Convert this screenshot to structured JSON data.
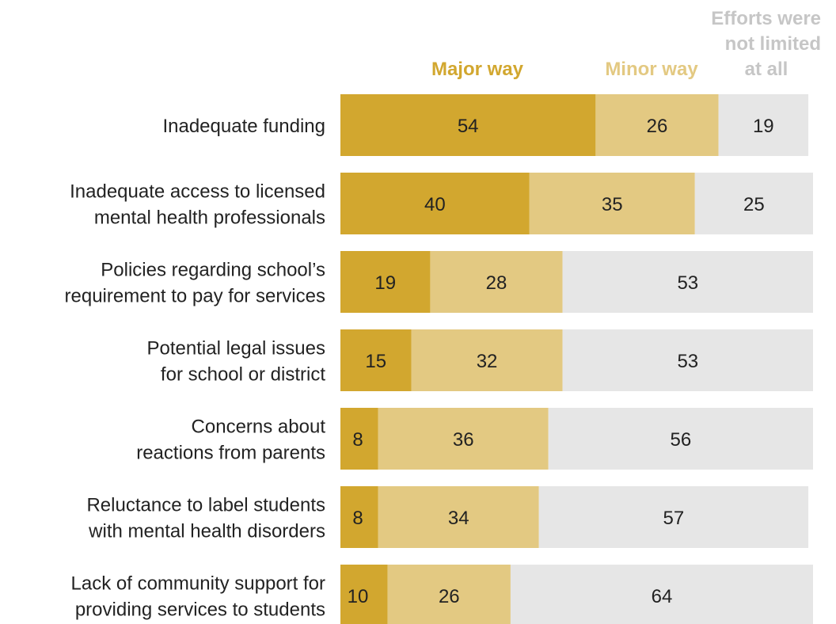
{
  "chart_data": {
    "type": "bar",
    "orientation": "horizontal",
    "stacked": true,
    "xlim": [
      0,
      100
    ],
    "unit": "%",
    "legend": {
      "placement": "top"
    },
    "grid": false,
    "categories": [
      [
        "Inadequate funding"
      ],
      [
        "Inadequate access to licensed",
        "mental health professionals"
      ],
      [
        "Policies regarding school’s",
        "requirement to pay for services"
      ],
      [
        "Potential legal issues",
        "for school or district"
      ],
      [
        "Concerns about",
        "reactions from parents"
      ],
      [
        "Reluctance to label students",
        "with mental health disorders"
      ],
      [
        "Lack of community support for",
        "providing services to students"
      ]
    ],
    "series": [
      {
        "name": "Major way",
        "color": "#d2a72f",
        "values": [
          54,
          40,
          19,
          15,
          8,
          8,
          10
        ]
      },
      {
        "name": "Minor way",
        "color": "#e3c982",
        "values": [
          26,
          35,
          28,
          32,
          36,
          34,
          26
        ]
      },
      {
        "name": [
          "Efforts were",
          "not limited",
          "at all"
        ],
        "color": "#e6e6e6",
        "values": [
          19,
          25,
          53,
          53,
          56,
          57,
          64
        ]
      }
    ],
    "header_colors": [
      "#d2a72f",
      "#e3c982",
      "#c6c6c6"
    ]
  }
}
